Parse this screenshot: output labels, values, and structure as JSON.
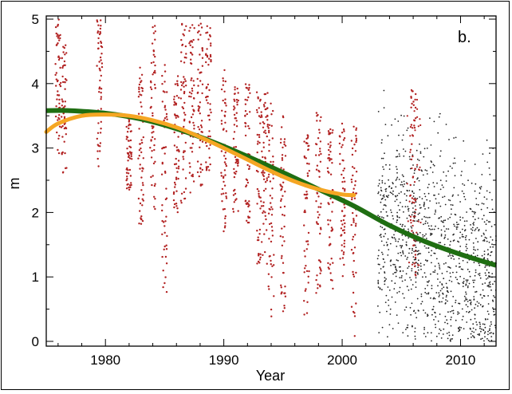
{
  "chart_data": {
    "type": "scatter",
    "title": "",
    "panel_label": "b.",
    "xlabel": "Year",
    "ylabel": "m",
    "xlim": [
      1975,
      2013
    ],
    "ylim": [
      0,
      5
    ],
    "xticks": [
      1980,
      1990,
      2000,
      2010
    ],
    "yticks": [
      0,
      1,
      2,
      3,
      4,
      5
    ],
    "grid": false,
    "colors": {
      "red_points": "#b22222",
      "black_points": "#222222",
      "green_fit": "#1f6e12",
      "orange_fit": "#f5a623",
      "axis": "#000000"
    },
    "series": [
      {
        "name": "observations (red)",
        "kind": "scatter",
        "columns": [
          {
            "x": 1976.0,
            "ymin": 2.9,
            "ymax": 5.0
          },
          {
            "x": 1976.5,
            "ymin": 2.6,
            "ymax": 4.6
          },
          {
            "x": 1979.5,
            "ymin": 2.7,
            "ymax": 5.0
          },
          {
            "x": 1982.0,
            "ymin": 2.3,
            "ymax": 3.5
          },
          {
            "x": 1983.0,
            "ymin": 1.8,
            "ymax": 4.3
          },
          {
            "x": 1984.0,
            "ymin": 2.0,
            "ymax": 4.9
          },
          {
            "x": 1985.0,
            "ymin": 0.7,
            "ymax": 4.4
          },
          {
            "x": 1986.0,
            "ymin": 2.0,
            "ymax": 4.2
          },
          {
            "x": 1986.6,
            "ymin": 2.0,
            "ymax": 5.0
          },
          {
            "x": 1987.3,
            "ymin": 2.3,
            "ymax": 5.0
          },
          {
            "x": 1988.0,
            "ymin": 2.4,
            "ymax": 5.0
          },
          {
            "x": 1988.7,
            "ymin": 2.6,
            "ymax": 4.9
          },
          {
            "x": 1990.0,
            "ymin": 1.7,
            "ymax": 4.3
          },
          {
            "x": 1991.0,
            "ymin": 2.0,
            "ymax": 4.1
          },
          {
            "x": 1992.0,
            "ymin": 1.8,
            "ymax": 4.0
          },
          {
            "x": 1993.0,
            "ymin": 1.2,
            "ymax": 3.9
          },
          {
            "x": 1993.5,
            "ymin": 1.0,
            "ymax": 4.0
          },
          {
            "x": 1994.0,
            "ymin": 0.3,
            "ymax": 3.7
          },
          {
            "x": 1995.0,
            "ymin": 0.4,
            "ymax": 3.5
          },
          {
            "x": 1997.0,
            "ymin": 0.4,
            "ymax": 3.2
          },
          {
            "x": 1998.0,
            "ymin": 0.7,
            "ymax": 3.6
          },
          {
            "x": 1999.0,
            "ymin": 0.8,
            "ymax": 3.3
          },
          {
            "x": 2000.0,
            "ymin": 1.0,
            "ymax": 3.5
          },
          {
            "x": 2001.0,
            "ymin": 0.0,
            "ymax": 3.4
          },
          {
            "x": 2006.0,
            "ymin": 1.0,
            "ymax": 4.0
          }
        ]
      },
      {
        "name": "observations (black)",
        "kind": "scatter",
        "x_range": [
          2003,
          2013
        ],
        "y_range": [
          0,
          4.3
        ]
      },
      {
        "name": "green fit",
        "kind": "line",
        "x": [
          1975,
          1977,
          1980,
          1983,
          1986,
          1989,
          1992,
          1995,
          1998,
          2001,
          2004,
          2007,
          2010,
          2013
        ],
        "y": [
          3.58,
          3.58,
          3.54,
          3.45,
          3.3,
          3.1,
          2.87,
          2.62,
          2.36,
          2.1,
          1.8,
          1.55,
          1.35,
          1.18
        ]
      },
      {
        "name": "orange fit",
        "kind": "line",
        "x": [
          1975,
          1976,
          1978,
          1980,
          1982,
          1984,
          1986,
          1988,
          1990,
          1992,
          1994,
          1996,
          1998,
          2000,
          2001
        ],
        "y": [
          3.25,
          3.38,
          3.5,
          3.52,
          3.5,
          3.43,
          3.32,
          3.17,
          3.0,
          2.82,
          2.64,
          2.48,
          2.36,
          2.28,
          2.27
        ]
      }
    ]
  }
}
